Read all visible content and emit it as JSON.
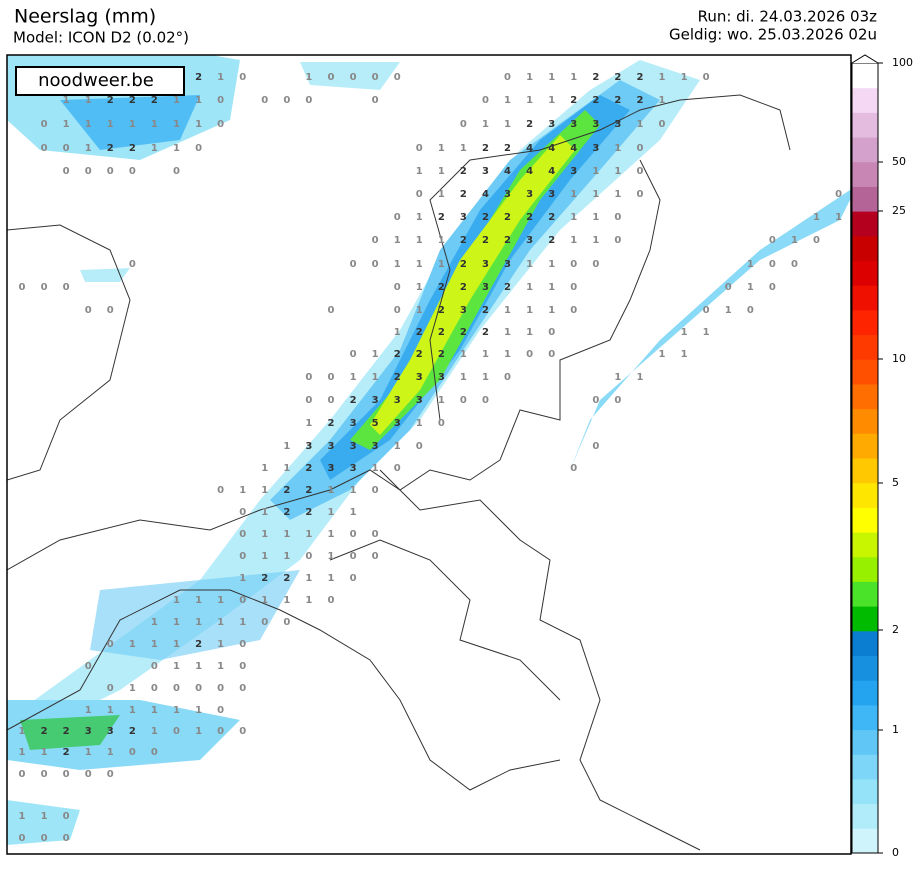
{
  "header": {
    "title": "Neerslag (mm)",
    "model": "Model: ICON D2 (0.02°)",
    "run": "Run: di. 24.03.2026 03z",
    "valid": "Geldig: wo. 25.03.2026 02u"
  },
  "logo": "noodweer.be",
  "colorbar": {
    "ticks": [
      0,
      1,
      2,
      5,
      10,
      25,
      50,
      100
    ],
    "colors": [
      "#cff4fb",
      "#b0ecf9",
      "#95e3f8",
      "#7dd6f7",
      "#5fc6f5",
      "#3fb6f5",
      "#24a4ef",
      "#1790e0",
      "#0b7ed2",
      "#00bb00",
      "#4be32a",
      "#96f000",
      "#c8f500",
      "#ffff00",
      "#ffe600",
      "#ffc800",
      "#ffaa00",
      "#ff8c00",
      "#ff6e00",
      "#ff5000",
      "#ff3a00",
      "#ff2400",
      "#f01000",
      "#dc0000",
      "#c80000",
      "#b4001e",
      "#b46496",
      "#c886b4",
      "#d4a0cc",
      "#e4bce0",
      "#f4d8f4",
      "#ffffff"
    ]
  },
  "grid_labels": [
    [
      null,
      null,
      null,
      null,
      null,
      null,
      null,
      null,
      2,
      1,
      0,
      null,
      null,
      1,
      0,
      0,
      0,
      0,
      null,
      null,
      null,
      null,
      0,
      1,
      1,
      1,
      2,
      2,
      2,
      1,
      1,
      0
    ],
    [
      null,
      null,
      1,
      1,
      2,
      2,
      2,
      1,
      1,
      0,
      null,
      0,
      0,
      0,
      null,
      null,
      0,
      null,
      null,
      null,
      null,
      0,
      1,
      1,
      1,
      2,
      2,
      2,
      2,
      1
    ],
    [
      null,
      0,
      1,
      1,
      1,
      1,
      1,
      1,
      1,
      0,
      null,
      null,
      null,
      null,
      null,
      null,
      null,
      null,
      null,
      null,
      0,
      1,
      1,
      2,
      3,
      3,
      3,
      3,
      1,
      0
    ],
    [
      null,
      0,
      0,
      1,
      2,
      2,
      1,
      1,
      0,
      null,
      null,
      null,
      null,
      null,
      null,
      null,
      null,
      null,
      0,
      1,
      1,
      2,
      2,
      4,
      4,
      4,
      3,
      1,
      0
    ],
    [
      null,
      null,
      0,
      0,
      0,
      0,
      null,
      0,
      null,
      null,
      null,
      null,
      null,
      null,
      null,
      null,
      null,
      null,
      1,
      1,
      2,
      3,
      4,
      4,
      4,
      3,
      1,
      1,
      0
    ],
    [
      null,
      null,
      null,
      null,
      null,
      null,
      null,
      null,
      null,
      null,
      null,
      null,
      null,
      null,
      null,
      null,
      null,
      null,
      0,
      1,
      2,
      4,
      3,
      3,
      3,
      1,
      1,
      1,
      0,
      null,
      null,
      null,
      null,
      null,
      null,
      null,
      null,
      0
    ],
    [
      null,
      null,
      null,
      null,
      null,
      null,
      null,
      null,
      null,
      null,
      null,
      null,
      null,
      null,
      null,
      null,
      null,
      0,
      1,
      2,
      3,
      2,
      2,
      2,
      2,
      1,
      1,
      0,
      null,
      null,
      null,
      null,
      null,
      null,
      null,
      null,
      1,
      1
    ],
    [
      null,
      null,
      null,
      null,
      null,
      null,
      null,
      null,
      null,
      null,
      null,
      null,
      null,
      null,
      null,
      null,
      0,
      1,
      1,
      1,
      2,
      2,
      2,
      3,
      2,
      1,
      1,
      0,
      null,
      null,
      null,
      null,
      null,
      null,
      0,
      1,
      0
    ],
    [
      null,
      null,
      null,
      null,
      null,
      0,
      null,
      null,
      null,
      null,
      null,
      null,
      null,
      null,
      null,
      0,
      0,
      1,
      1,
      1,
      2,
      3,
      3,
      1,
      1,
      0,
      0,
      null,
      null,
      null,
      null,
      null,
      null,
      1,
      0,
      0
    ],
    [
      0,
      0,
      0,
      null,
      null,
      null,
      null,
      null,
      null,
      null,
      null,
      null,
      null,
      null,
      null,
      null,
      null,
      0,
      1,
      2,
      2,
      3,
      2,
      1,
      1,
      0,
      null,
      null,
      null,
      null,
      null,
      null,
      0,
      1,
      0
    ],
    [
      null,
      null,
      null,
      0,
      0,
      null,
      null,
      null,
      null,
      null,
      null,
      null,
      null,
      null,
      0,
      null,
      null,
      0,
      1,
      2,
      3,
      2,
      1,
      1,
      1,
      0,
      null,
      null,
      null,
      null,
      null,
      0,
      1,
      0
    ],
    [
      null,
      null,
      null,
      null,
      null,
      null,
      null,
      null,
      null,
      null,
      null,
      null,
      null,
      null,
      null,
      null,
      null,
      1,
      2,
      2,
      2,
      2,
      1,
      1,
      0,
      null,
      null,
      null,
      null,
      null,
      1,
      1
    ],
    [
      null,
      null,
      null,
      null,
      null,
      null,
      null,
      null,
      null,
      null,
      null,
      null,
      null,
      null,
      null,
      0,
      1,
      2,
      2,
      2,
      1,
      1,
      1,
      0,
      0,
      null,
      null,
      null,
      null,
      1,
      1
    ],
    [
      null,
      null,
      null,
      null,
      null,
      null,
      null,
      null,
      null,
      null,
      null,
      null,
      null,
      0,
      0,
      1,
      1,
      2,
      3,
      3,
      1,
      1,
      0,
      null,
      null,
      null,
      null,
      1,
      1
    ],
    [
      null,
      null,
      null,
      null,
      null,
      null,
      null,
      null,
      null,
      null,
      null,
      null,
      null,
      0,
      0,
      2,
      3,
      3,
      3,
      1,
      0,
      0,
      null,
      null,
      null,
      null,
      0,
      0
    ],
    [
      null,
      null,
      null,
      null,
      null,
      null,
      null,
      null,
      null,
      null,
      null,
      null,
      null,
      1,
      2,
      3,
      5,
      3,
      1,
      0
    ],
    [
      null,
      null,
      null,
      null,
      null,
      null,
      null,
      null,
      null,
      null,
      null,
      null,
      1,
      3,
      3,
      3,
      3,
      1,
      0,
      null,
      null,
      null,
      null,
      null,
      null,
      null,
      0
    ],
    [
      null,
      null,
      null,
      null,
      null,
      null,
      null,
      null,
      null,
      null,
      null,
      1,
      1,
      2,
      3,
      3,
      1,
      0,
      null,
      null,
      null,
      null,
      null,
      null,
      null,
      0
    ],
    [
      null,
      null,
      null,
      null,
      null,
      null,
      null,
      null,
      null,
      0,
      1,
      1,
      2,
      2,
      1,
      1,
      0
    ],
    [
      null,
      null,
      null,
      null,
      null,
      null,
      null,
      null,
      null,
      null,
      0,
      1,
      2,
      2,
      1,
      1
    ],
    [
      null,
      null,
      null,
      null,
      null,
      null,
      null,
      null,
      null,
      null,
      0,
      1,
      1,
      1,
      1,
      0,
      0
    ],
    [
      null,
      null,
      null,
      null,
      null,
      null,
      null,
      null,
      null,
      null,
      0,
      1,
      1,
      0,
      1,
      0,
      0
    ],
    [
      null,
      null,
      null,
      null,
      null,
      null,
      null,
      null,
      null,
      null,
      1,
      2,
      2,
      1,
      1,
      0
    ],
    [
      null,
      null,
      null,
      null,
      null,
      null,
      null,
      1,
      1,
      1,
      0,
      1,
      1,
      1,
      0
    ],
    [
      null,
      null,
      null,
      null,
      null,
      null,
      1,
      1,
      1,
      1,
      1,
      0,
      0
    ],
    [
      null,
      null,
      null,
      null,
      0,
      1,
      1,
      1,
      2,
      1,
      0
    ],
    [
      null,
      null,
      null,
      0,
      null,
      null,
      0,
      1,
      1,
      1,
      0
    ],
    [
      null,
      null,
      null,
      null,
      0,
      1,
      0,
      0,
      0,
      0,
      0
    ],
    [
      null,
      null,
      null,
      1,
      1,
      1,
      1,
      1,
      1,
      0
    ],
    [
      1,
      2,
      2,
      3,
      3,
      2,
      1,
      0,
      1,
      0,
      0
    ],
    [
      1,
      1,
      2,
      1,
      1,
      0,
      0
    ],
    [
      0,
      0,
      0,
      0,
      0
    ],
    [
      1,
      1,
      0
    ],
    [
      0,
      0,
      0
    ]
  ]
}
